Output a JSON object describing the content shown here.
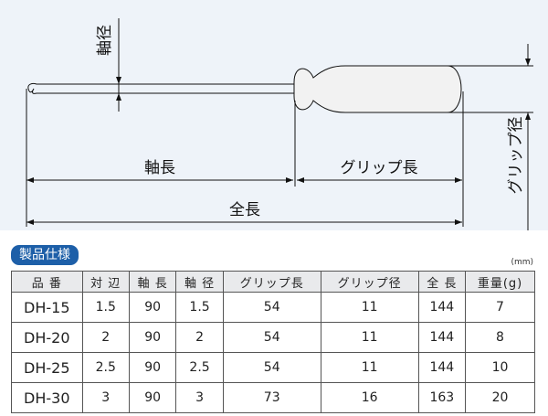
{
  "diagram": {
    "shaft_diameter": "軸径",
    "shaft_length": "軸長",
    "grip_length": "グリップ長",
    "total_length": "全長",
    "grip_diameter": "グリップ径"
  },
  "section_title": "製品仕様",
  "unit": "(mm)",
  "table": {
    "headers": [
      "品 番",
      "対 辺",
      "軸 長",
      "軸 径",
      "グリップ長",
      "グリップ径",
      "全 長",
      "重量(g)"
    ],
    "rows": [
      [
        "DH-15",
        "1.5",
        "90",
        "1.5",
        "54",
        "11",
        "144",
        "7"
      ],
      [
        "DH-20",
        "2",
        "90",
        "2",
        "54",
        "11",
        "144",
        "8"
      ],
      [
        "DH-25",
        "2.5",
        "90",
        "2.5",
        "54",
        "11",
        "144",
        "10"
      ],
      [
        "DH-30",
        "3",
        "90",
        "3",
        "73",
        "16",
        "163",
        "20"
      ]
    ]
  },
  "colors": {
    "badge": "#1d5fa8",
    "diagram_bg": "#eef3f9",
    "handle_fill": "#f2f2f2"
  }
}
